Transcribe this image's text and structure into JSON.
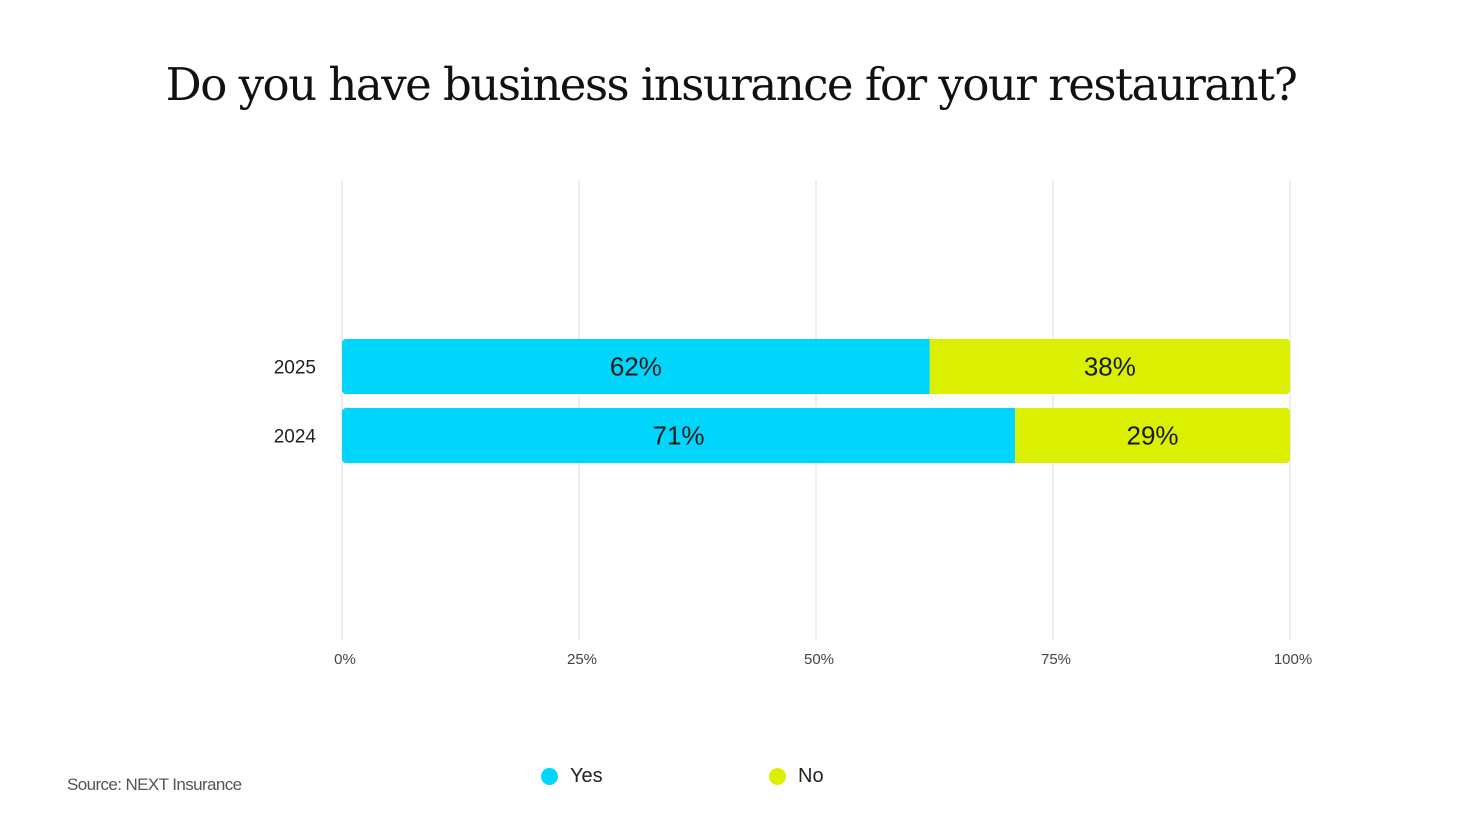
{
  "title": "Do you have business insurance for your restaurant?",
  "source": "Source: NEXT Insurance",
  "legend": [
    {
      "label": "Yes",
      "color": "#00d5fb"
    },
    {
      "label": "No",
      "color": "#dbef00"
    }
  ],
  "chart_data": {
    "type": "bar",
    "orientation": "horizontal",
    "stacked": true,
    "title": "Do you have business insurance for your restaurant?",
    "categories": [
      "2025",
      "2024"
    ],
    "series": [
      {
        "name": "Yes",
        "color": "#00d5fb",
        "values": [
          62,
          71
        ],
        "labels": [
          "62%",
          "71%"
        ]
      },
      {
        "name": "No",
        "color": "#dbef00",
        "values": [
          38,
          29
        ],
        "labels": [
          "38%",
          "29%"
        ]
      }
    ],
    "xlim": [
      0,
      100
    ],
    "xticks": [
      0,
      25,
      50,
      75,
      100
    ],
    "xtick_labels": [
      "0%",
      "25%",
      "50%",
      "75%",
      "100%"
    ],
    "grid": true,
    "legend_position": "bottom"
  }
}
